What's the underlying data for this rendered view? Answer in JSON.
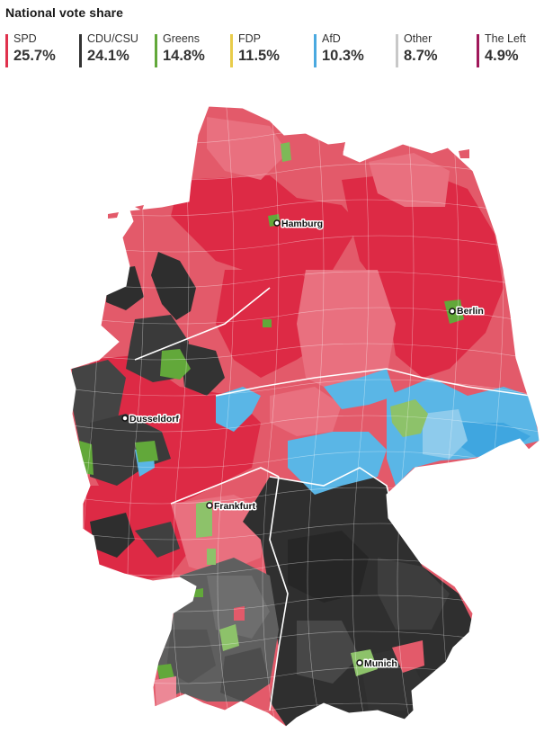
{
  "title": "National vote share",
  "parties": [
    {
      "name": "SPD",
      "share": "25.7%",
      "color": "#e0314d"
    },
    {
      "name": "CDU/CSU",
      "share": "24.1%",
      "color": "#333333"
    },
    {
      "name": "Greens",
      "share": "14.8%",
      "color": "#62a83a"
    },
    {
      "name": "FDP",
      "share": "11.5%",
      "color": "#e8cc4a"
    },
    {
      "name": "AfD",
      "share": "10.3%",
      "color": "#4aa9e0"
    },
    {
      "name": "Other",
      "share": "8.7%",
      "color": "#c8c8c8"
    },
    {
      "name": "The Left",
      "share": "4.9%",
      "color": "#a0185a"
    }
  ],
  "cities": [
    "Hamburg",
    "Berlin",
    "Dusseldorf",
    "Frankfurt",
    "Munich"
  ]
}
